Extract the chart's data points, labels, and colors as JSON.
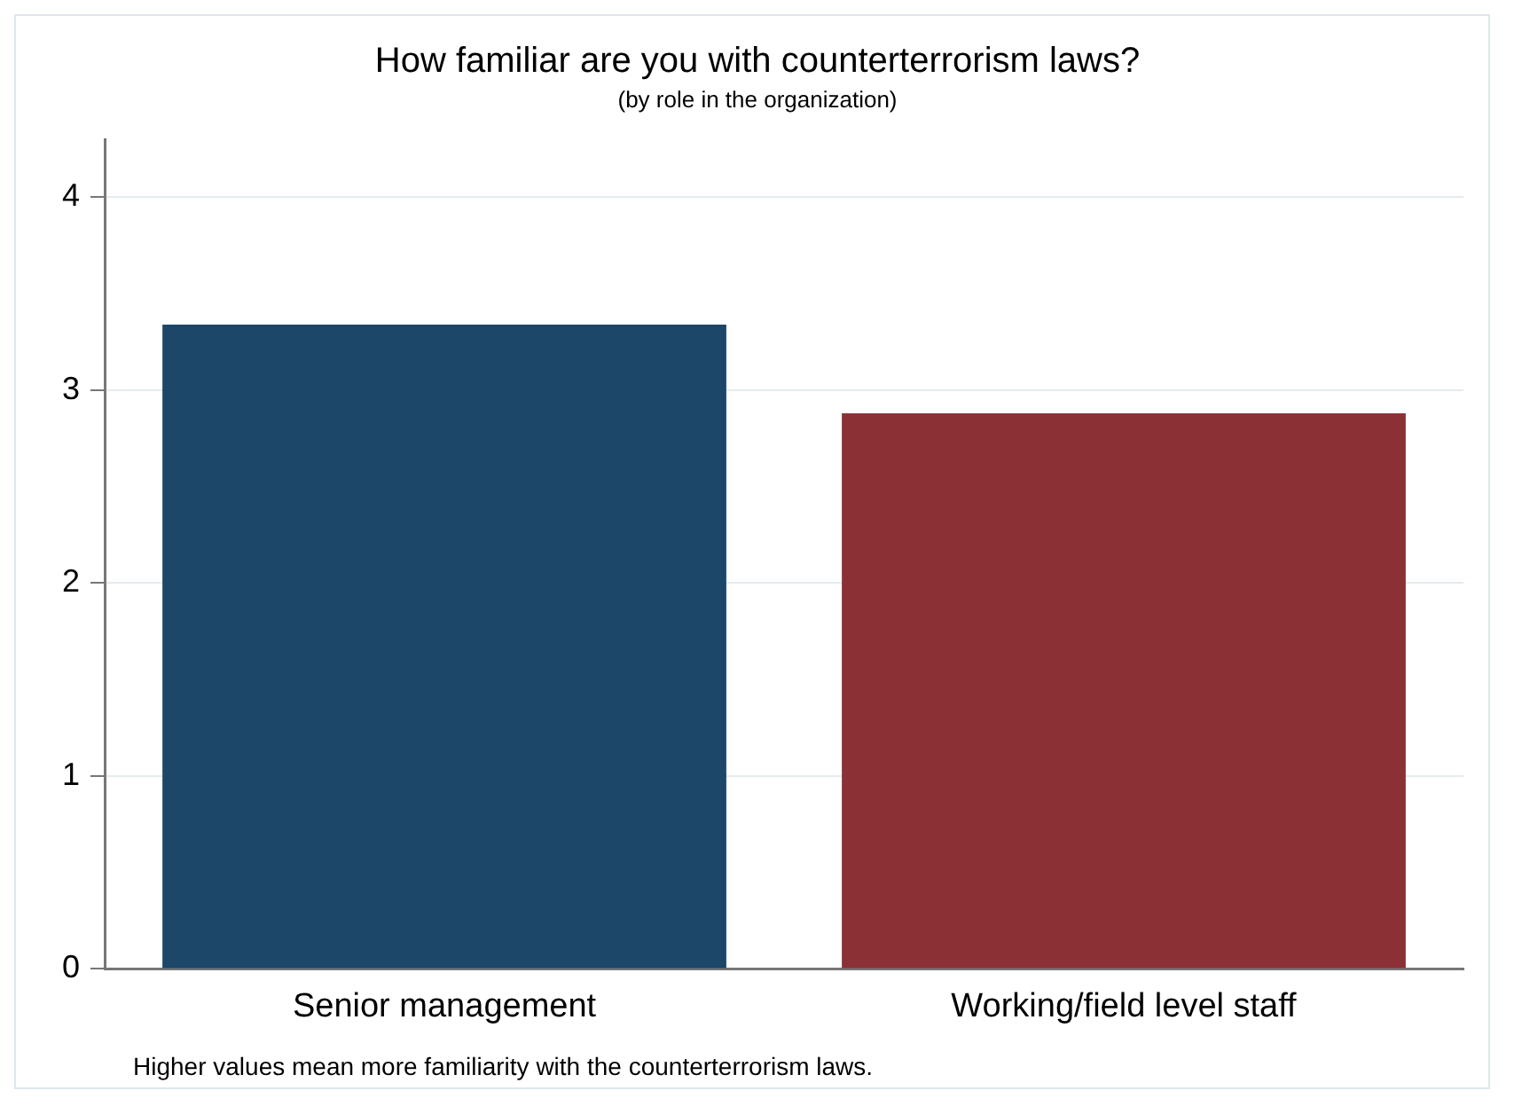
{
  "chart_data": {
    "type": "bar",
    "title": "How familiar are you with counterterrorism laws?",
    "subtitle": "(by role in the organization)",
    "categories": [
      "Senior management",
      "Working/field level staff"
    ],
    "values": [
      3.34,
      2.88
    ],
    "colors": [
      "#1c4769",
      "#8b3136"
    ],
    "ylim": [
      0,
      4.3
    ],
    "yticks": [
      0,
      1,
      2,
      3,
      4
    ],
    "grid": "y",
    "legend": false,
    "annotations": [
      "Higher values mean more familiarity with the counterterrorism laws."
    ]
  }
}
